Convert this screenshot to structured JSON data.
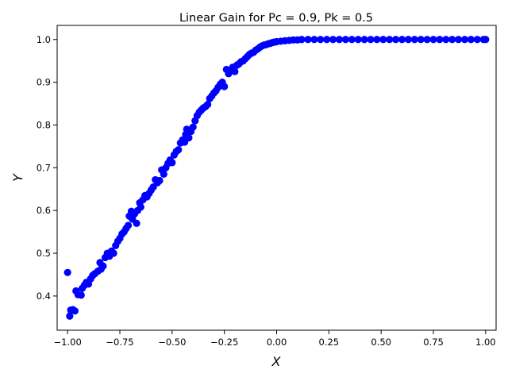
{
  "chart_data": {
    "type": "scatter",
    "title": "Linear Gain for Pc = 0.9, Pk = 0.5",
    "xlabel": "X",
    "ylabel": "Y",
    "xlim": [
      -1.05,
      1.05
    ],
    "ylim": [
      0.32,
      1.033
    ],
    "grid": false,
    "marker_color": "#0000ff",
    "x_ticks": [
      {
        "value": -1.0,
        "label": "−1.00"
      },
      {
        "value": -0.75,
        "label": "−0.75"
      },
      {
        "value": -0.5,
        "label": "−0.50"
      },
      {
        "value": -0.25,
        "label": "−0.25"
      },
      {
        "value": 0.0,
        "label": "0.00"
      },
      {
        "value": 0.25,
        "label": "0.25"
      },
      {
        "value": 0.5,
        "label": "0.50"
      },
      {
        "value": 0.75,
        "label": "0.75"
      },
      {
        "value": 1.0,
        "label": "1.00"
      }
    ],
    "y_ticks": [
      {
        "value": 0.4,
        "label": "0.4"
      },
      {
        "value": 0.5,
        "label": "0.5"
      },
      {
        "value": 0.6,
        "label": "0.6"
      },
      {
        "value": 0.7,
        "label": "0.7"
      },
      {
        "value": 0.8,
        "label": "0.8"
      },
      {
        "value": 0.9,
        "label": "0.9"
      },
      {
        "value": 1.0,
        "label": "1.0"
      }
    ],
    "points": [
      [
        -1.0,
        0.455
      ],
      [
        -0.99,
        0.353
      ],
      [
        -0.985,
        0.367
      ],
      [
        -0.975,
        0.368
      ],
      [
        -0.965,
        0.365
      ],
      [
        -0.96,
        0.412
      ],
      [
        -0.95,
        0.403
      ],
      [
        -0.935,
        0.402
      ],
      [
        -0.93,
        0.418
      ],
      [
        -0.92,
        0.425
      ],
      [
        -0.91,
        0.432
      ],
      [
        -0.9,
        0.428
      ],
      [
        -0.89,
        0.44
      ],
      [
        -0.88,
        0.448
      ],
      [
        -0.87,
        0.452
      ],
      [
        -0.855,
        0.458
      ],
      [
        -0.845,
        0.478
      ],
      [
        -0.84,
        0.463
      ],
      [
        -0.83,
        0.47
      ],
      [
        -0.82,
        0.49
      ],
      [
        -0.81,
        0.5
      ],
      [
        -0.8,
        0.493
      ],
      [
        -0.79,
        0.505
      ],
      [
        -0.78,
        0.5
      ],
      [
        -0.77,
        0.518
      ],
      [
        -0.76,
        0.528
      ],
      [
        -0.75,
        0.535
      ],
      [
        -0.74,
        0.545
      ],
      [
        -0.73,
        0.55
      ],
      [
        -0.72,
        0.558
      ],
      [
        -0.71,
        0.565
      ],
      [
        -0.705,
        0.587
      ],
      [
        -0.695,
        0.598
      ],
      [
        -0.69,
        0.58
      ],
      [
        -0.68,
        0.592
      ],
      [
        -0.67,
        0.57
      ],
      [
        -0.665,
        0.6
      ],
      [
        -0.655,
        0.618
      ],
      [
        -0.65,
        0.608
      ],
      [
        -0.64,
        0.625
      ],
      [
        -0.63,
        0.635
      ],
      [
        -0.62,
        0.632
      ],
      [
        -0.61,
        0.64
      ],
      [
        -0.6,
        0.648
      ],
      [
        -0.59,
        0.655
      ],
      [
        -0.58,
        0.672
      ],
      [
        -0.57,
        0.665
      ],
      [
        -0.56,
        0.67
      ],
      [
        -0.55,
        0.695
      ],
      [
        -0.54,
        0.685
      ],
      [
        -0.53,
        0.7
      ],
      [
        -0.52,
        0.71
      ],
      [
        -0.51,
        0.718
      ],
      [
        -0.5,
        0.712
      ],
      [
        -0.49,
        0.73
      ],
      [
        -0.48,
        0.738
      ],
      [
        -0.47,
        0.742
      ],
      [
        -0.46,
        0.758
      ],
      [
        -0.45,
        0.765
      ],
      [
        -0.44,
        0.76
      ],
      [
        -0.435,
        0.778
      ],
      [
        -0.43,
        0.79
      ],
      [
        -0.42,
        0.77
      ],
      [
        -0.41,
        0.785
      ],
      [
        -0.4,
        0.795
      ],
      [
        -0.39,
        0.81
      ],
      [
        -0.38,
        0.822
      ],
      [
        -0.37,
        0.83
      ],
      [
        -0.36,
        0.835
      ],
      [
        -0.35,
        0.84
      ],
      [
        -0.34,
        0.843
      ],
      [
        -0.33,
        0.848
      ],
      [
        -0.32,
        0.862
      ],
      [
        -0.31,
        0.868
      ],
      [
        -0.3,
        0.875
      ],
      [
        -0.29,
        0.88
      ],
      [
        -0.28,
        0.888
      ],
      [
        -0.27,
        0.895
      ],
      [
        -0.26,
        0.9
      ],
      [
        -0.25,
        0.89
      ],
      [
        -0.24,
        0.93
      ],
      [
        -0.23,
        0.92
      ],
      [
        -0.22,
        0.928
      ],
      [
        -0.21,
        0.935
      ],
      [
        -0.2,
        0.925
      ],
      [
        -0.19,
        0.94
      ],
      [
        -0.18,
        0.943
      ],
      [
        -0.17,
        0.948
      ],
      [
        -0.16,
        0.95
      ],
      [
        -0.15,
        0.955
      ],
      [
        -0.14,
        0.96
      ],
      [
        -0.13,
        0.965
      ],
      [
        -0.12,
        0.968
      ],
      [
        -0.11,
        0.97
      ],
      [
        -0.1,
        0.975
      ],
      [
        -0.09,
        0.978
      ],
      [
        -0.08,
        0.982
      ],
      [
        -0.07,
        0.985
      ],
      [
        -0.06,
        0.987
      ],
      [
        -0.05,
        0.988
      ],
      [
        -0.04,
        0.99
      ],
      [
        -0.03,
        0.991
      ],
      [
        -0.02,
        0.993
      ],
      [
        -0.01,
        0.994
      ],
      [
        0.0,
        0.995
      ],
      [
        0.02,
        0.996
      ],
      [
        0.04,
        0.997
      ],
      [
        0.06,
        0.998
      ],
      [
        0.08,
        0.999
      ],
      [
        0.1,
        0.999
      ],
      [
        0.12,
        1.0
      ],
      [
        0.15,
        1.0
      ],
      [
        0.18,
        1.0
      ],
      [
        0.21,
        1.0
      ],
      [
        0.24,
        1.0
      ],
      [
        0.27,
        1.0
      ],
      [
        0.3,
        1.0
      ],
      [
        0.33,
        1.0
      ],
      [
        0.36,
        1.0
      ],
      [
        0.39,
        1.0
      ],
      [
        0.42,
        1.0
      ],
      [
        0.45,
        1.0
      ],
      [
        0.48,
        1.0
      ],
      [
        0.51,
        1.0
      ],
      [
        0.54,
        1.0
      ],
      [
        0.57,
        1.0
      ],
      [
        0.6,
        1.0
      ],
      [
        0.63,
        1.0
      ],
      [
        0.66,
        1.0
      ],
      [
        0.69,
        1.0
      ],
      [
        0.72,
        1.0
      ],
      [
        0.75,
        1.0
      ],
      [
        0.78,
        1.0
      ],
      [
        0.81,
        1.0
      ],
      [
        0.84,
        1.0
      ],
      [
        0.87,
        1.0
      ],
      [
        0.9,
        1.0
      ],
      [
        0.93,
        1.0
      ],
      [
        0.96,
        1.0
      ],
      [
        0.99,
        1.0
      ],
      [
        1.0,
        1.0
      ]
    ]
  }
}
